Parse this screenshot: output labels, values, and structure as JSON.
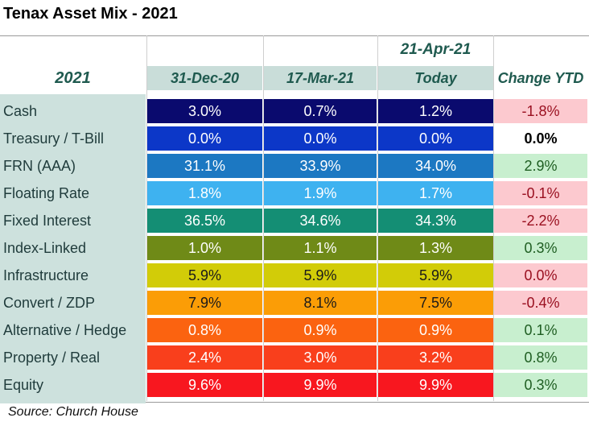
{
  "header": {
    "title": "Tenax Asset Mix - 2021",
    "source": "Source: Church House"
  },
  "chart_data": {
    "type": "table",
    "title": "Tenax Asset Mix - 2021",
    "top_header": "21-Apr-21",
    "corner_label": "2021",
    "columns": [
      "31-Dec-20",
      "17-Mar-21",
      "Today",
      "Change YTD"
    ],
    "rows": [
      {
        "label": "Cash",
        "values": [
          "3.0%",
          "0.7%",
          "1.2%"
        ],
        "change": "-1.8%",
        "color": "#0a0a6e",
        "text": "#ffffff"
      },
      {
        "label": "Treasury / T-Bill",
        "values": [
          "0.0%",
          "0.0%",
          "0.0%"
        ],
        "change": "0.0%",
        "color": "#0c37c8",
        "text": "#ffffff"
      },
      {
        "label": "FRN (AAA)",
        "values": [
          "31.1%",
          "33.9%",
          "34.0%"
        ],
        "change": "2.9%",
        "color": "#1c78c2",
        "text": "#ffffff"
      },
      {
        "label": "Floating Rate",
        "values": [
          "1.8%",
          "1.9%",
          "1.7%"
        ],
        "change": "-0.1%",
        "color": "#3eb2f0",
        "text": "#ffffff"
      },
      {
        "label": "Fixed Interest",
        "values": [
          "36.5%",
          "34.6%",
          "34.3%"
        ],
        "change": "-2.2%",
        "color": "#148e74",
        "text": "#ffffff"
      },
      {
        "label": "Index-Linked",
        "values": [
          "1.0%",
          "1.1%",
          "1.3%"
        ],
        "change": "0.3%",
        "color": "#6f8a17",
        "text": "#ffffff"
      },
      {
        "label": "Infrastructure",
        "values": [
          "5.9%",
          "5.9%",
          "5.9%"
        ],
        "change": "0.0%",
        "color": "#d2cc08",
        "text": "#1a1a1a"
      },
      {
        "label": "Convert / ZDP",
        "values": [
          "7.9%",
          "8.1%",
          "7.5%"
        ],
        "change": "-0.4%",
        "color": "#fb9d06",
        "text": "#1a1a1a"
      },
      {
        "label": "Alternative / Hedge",
        "values": [
          "0.8%",
          "0.9%",
          "0.9%"
        ],
        "change": "0.1%",
        "color": "#fb6310",
        "text": "#ffffff"
      },
      {
        "label": "Property / Real",
        "values": [
          "2.4%",
          "3.0%",
          "3.2%"
        ],
        "change": "0.8%",
        "color": "#f93f1c",
        "text": "#ffffff"
      },
      {
        "label": "Equity",
        "values": [
          "9.6%",
          "9.9%",
          "9.9%"
        ],
        "change": "0.3%",
        "color": "#f8171f",
        "text": "#ffffff"
      }
    ],
    "change_colors": {
      "negative_bg": "#fcc9cf",
      "negative_text": "#9a1020",
      "positive_bg": "#c8efcf",
      "positive_text": "#1f5e22",
      "zero_bg": "#ffffff",
      "zero_text": "#000000"
    },
    "zero_changes": {
      "Treasury / T-Bill": "neutral",
      "Infrastructure": "negative"
    }
  }
}
